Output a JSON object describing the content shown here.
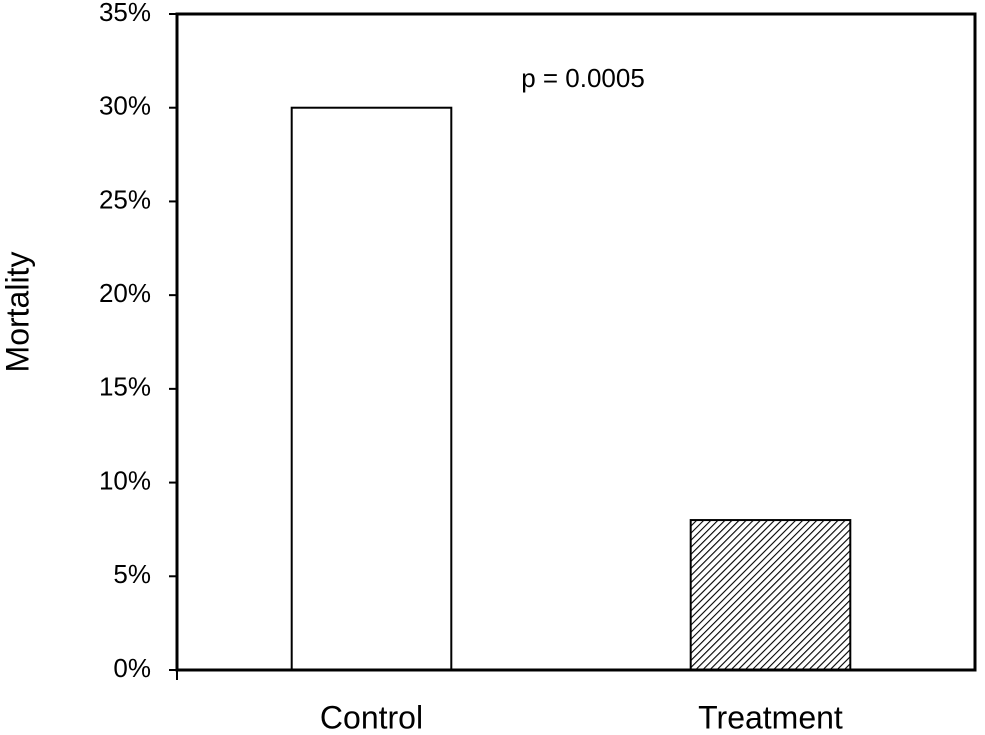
{
  "chart_data": {
    "type": "bar",
    "y_label": "Mortality",
    "annotation": "p = 0.0005",
    "categories": [
      "Control",
      "Treatment"
    ],
    "values": [
      30,
      8
    ],
    "bar_fills": [
      "solid",
      "hatched"
    ],
    "color": "#ffffff",
    "edge_color": "#000000",
    "ylim": [
      0,
      35
    ],
    "yticks": [
      {
        "value": 0,
        "label": "0%"
      },
      {
        "value": 5,
        "label": "5%"
      },
      {
        "value": 10,
        "label": "10%"
      },
      {
        "value": 15,
        "label": "15%"
      },
      {
        "value": 20,
        "label": "20%"
      },
      {
        "value": 25,
        "label": "25%"
      },
      {
        "value": 30,
        "label": "30%"
      },
      {
        "value": 35,
        "label": "35%"
      }
    ],
    "grid": false
  }
}
